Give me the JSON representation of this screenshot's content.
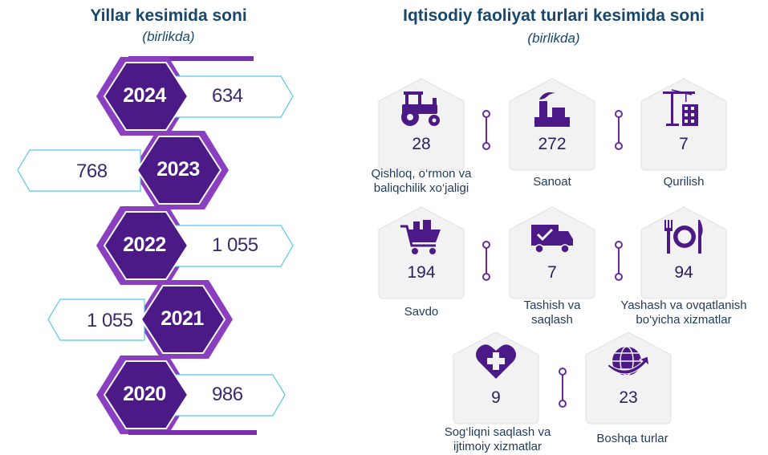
{
  "left": {
    "title": "Yillar kesimida soni",
    "subtitle": "(birlikda)",
    "rows": [
      {
        "year": "2024",
        "value": "634"
      },
      {
        "year": "2023",
        "value": "768"
      },
      {
        "year": "2022",
        "value": "1 055"
      },
      {
        "year": "2021",
        "value": "1 055"
      },
      {
        "year": "2020",
        "value": "986"
      }
    ]
  },
  "right": {
    "title": "Iqtisodiy faoliyat turlari kesimida soni",
    "subtitle": "(birlikda)",
    "items": [
      {
        "icon": "tractor-icon",
        "value": "28",
        "caption": "Qishloq, o‘rmon va baliqchilik xo‘jaligi"
      },
      {
        "icon": "factory-icon",
        "value": "272",
        "caption": "Sanoat"
      },
      {
        "icon": "construction-crane-icon",
        "value": "7",
        "caption": "Qurilish"
      },
      {
        "icon": "shopping-cart-icon",
        "value": "194",
        "caption": "Savdo"
      },
      {
        "icon": "delivery-truck-icon",
        "value": "7",
        "caption": "Tashish va saqlash"
      },
      {
        "icon": "dining-plate-icon",
        "value": "94",
        "caption": "Yashash va ovqatlanish bo‘yicha xizmatlar"
      },
      {
        "icon": "heart-health-icon",
        "value": "9",
        "caption": "Sog‘liqni saqlash va ijtimoiy xizmatlar"
      },
      {
        "icon": "globe-icon",
        "value": "23",
        "caption": "Boshqa turlar"
      }
    ]
  },
  "colors": {
    "purple_dark": "#4b1a86",
    "purple_light": "#8a3fc0",
    "title": "#17476b",
    "arrow_outline": "#55c6e6"
  }
}
